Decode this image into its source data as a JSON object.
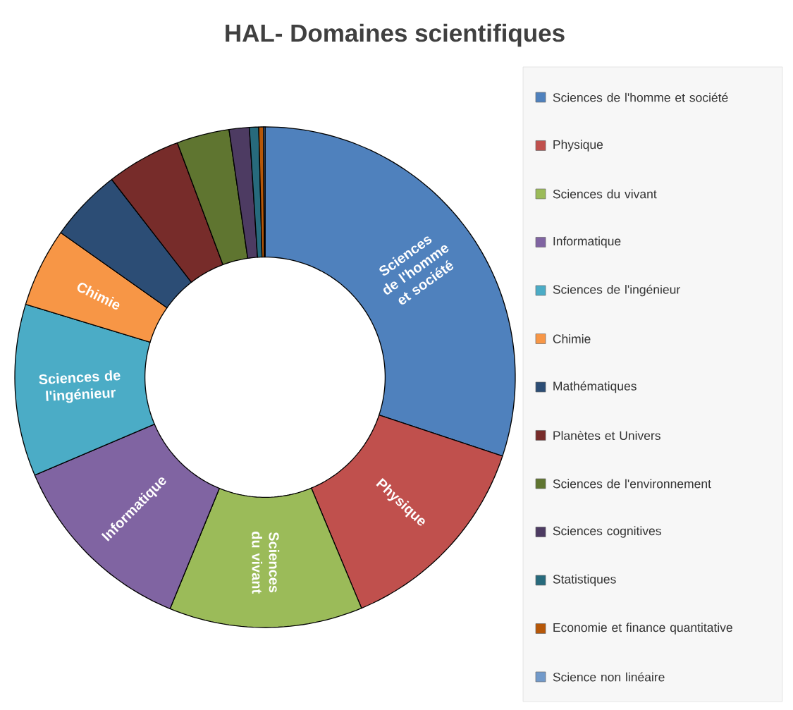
{
  "chart_data": {
    "type": "donut",
    "title": "HAL- Domaines scientifiques",
    "categories": [
      "Sciences de l'homme et société",
      "Physique",
      "Sciences du vivant",
      "Informatique",
      "Sciences de l'ingénieur",
      "Chimie",
      "Mathématiques",
      "Planètes et Univers",
      "Sciences de l'environnement",
      "Sciences cognitives",
      "Statistiques",
      "Economie et finance quantitative",
      "Science non linéaire"
    ],
    "values": [
      30.1,
      13.6,
      12.5,
      12.4,
      11.1,
      5.1,
      4.7,
      4.8,
      3.4,
      1.3,
      0.6,
      0.3,
      0.1
    ],
    "colors": [
      "#4f81bd",
      "#c0504d",
      "#9bbb59",
      "#8064a2",
      "#4bacc6",
      "#f79646",
      "#2c4d75",
      "#772c2a",
      "#5f7530",
      "#4d3b62",
      "#276a7c",
      "#b65708",
      "#729aca"
    ],
    "legend": "right"
  }
}
